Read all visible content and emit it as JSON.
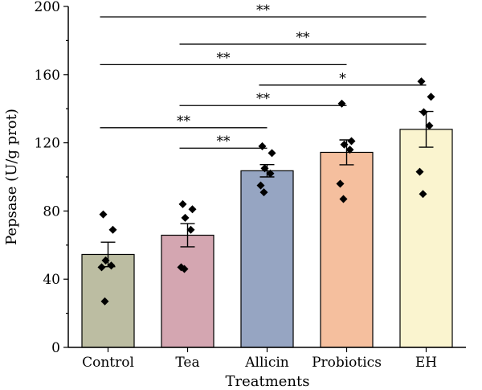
{
  "chart_data": {
    "type": "bar",
    "xlabel": "Treatments",
    "ylabel": "Pepsase (U/g prot)",
    "ylim": [
      0,
      200
    ],
    "yticks": [
      0,
      40,
      80,
      120,
      160,
      200
    ],
    "categories": [
      "Control",
      "Tea",
      "Allicin",
      "Probiotics",
      "EH"
    ],
    "values": [
      54.5,
      65.8,
      103.6,
      114.4,
      127.9
    ],
    "errors": [
      7.2,
      6.8,
      3.6,
      7.3,
      10.5
    ],
    "colors": [
      "#bcbda2",
      "#d4a6b1",
      "#96a5c2",
      "#f5bf9e",
      "#faf4cf"
    ],
    "points": [
      [
        78,
        69,
        51,
        48,
        47,
        27
      ],
      [
        84,
        81,
        76,
        69,
        47,
        46
      ],
      [
        118,
        114,
        105,
        102,
        95,
        91
      ],
      [
        143,
        121,
        119,
        116,
        96,
        87
      ],
      [
        156,
        147,
        138,
        130,
        103,
        90
      ]
    ],
    "significance": [
      {
        "from": 0,
        "to": 4,
        "label": "**",
        "y": 200
      },
      {
        "from": 1,
        "to": 4,
        "label": "**",
        "y": 184
      },
      {
        "from": 0,
        "to": 3,
        "label": "**",
        "y": 172
      },
      {
        "from": 2,
        "to": 4,
        "label": "*",
        "y": 160
      },
      {
        "from": 1,
        "to": 3,
        "label": "**",
        "y": 148
      },
      {
        "from": 0,
        "to": 2,
        "label": "**",
        "y": 135
      },
      {
        "from": 1,
        "to": 2,
        "label": "**",
        "y": 123
      }
    ]
  }
}
